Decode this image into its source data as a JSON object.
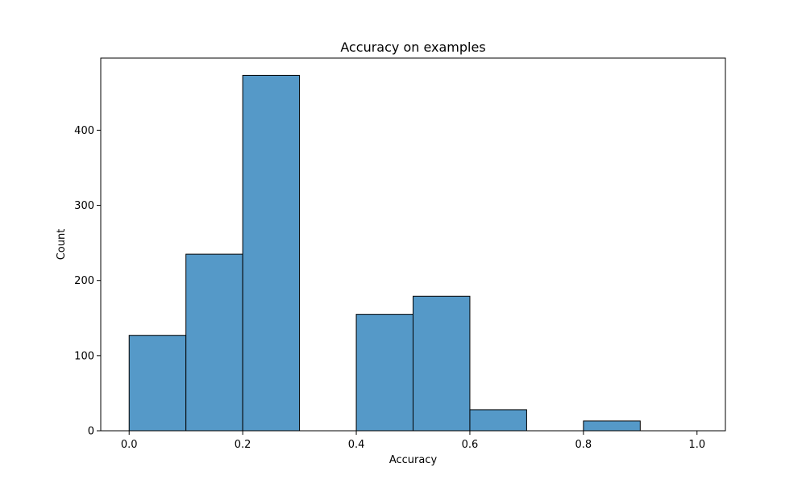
{
  "chart_data": {
    "type": "bar",
    "title": "Accuracy on examples",
    "xlabel": "Accuracy",
    "ylabel": "Count",
    "bin_edges": [
      0.0,
      0.1,
      0.2,
      0.3,
      0.4,
      0.5,
      0.6,
      0.7,
      0.8,
      0.9,
      1.0
    ],
    "values": [
      127,
      235,
      473,
      0,
      155,
      179,
      28,
      0,
      13,
      0
    ],
    "xlim": [
      -0.05,
      1.05
    ],
    "ylim": [
      0,
      496
    ],
    "x_ticks": [
      {
        "value": 0.0,
        "label": "0.0"
      },
      {
        "value": 0.2,
        "label": "0.2"
      },
      {
        "value": 0.4,
        "label": "0.4"
      },
      {
        "value": 0.6,
        "label": "0.6"
      },
      {
        "value": 0.8,
        "label": "0.8"
      },
      {
        "value": 1.0,
        "label": "1.0"
      }
    ],
    "y_ticks": [
      {
        "value": 0,
        "label": "0"
      },
      {
        "value": 100,
        "label": "100"
      },
      {
        "value": 200,
        "label": "200"
      },
      {
        "value": 300,
        "label": "300"
      },
      {
        "value": 400,
        "label": "400"
      }
    ],
    "grid": false,
    "bar_color": "#5599c8",
    "edge_color": "#000000"
  }
}
